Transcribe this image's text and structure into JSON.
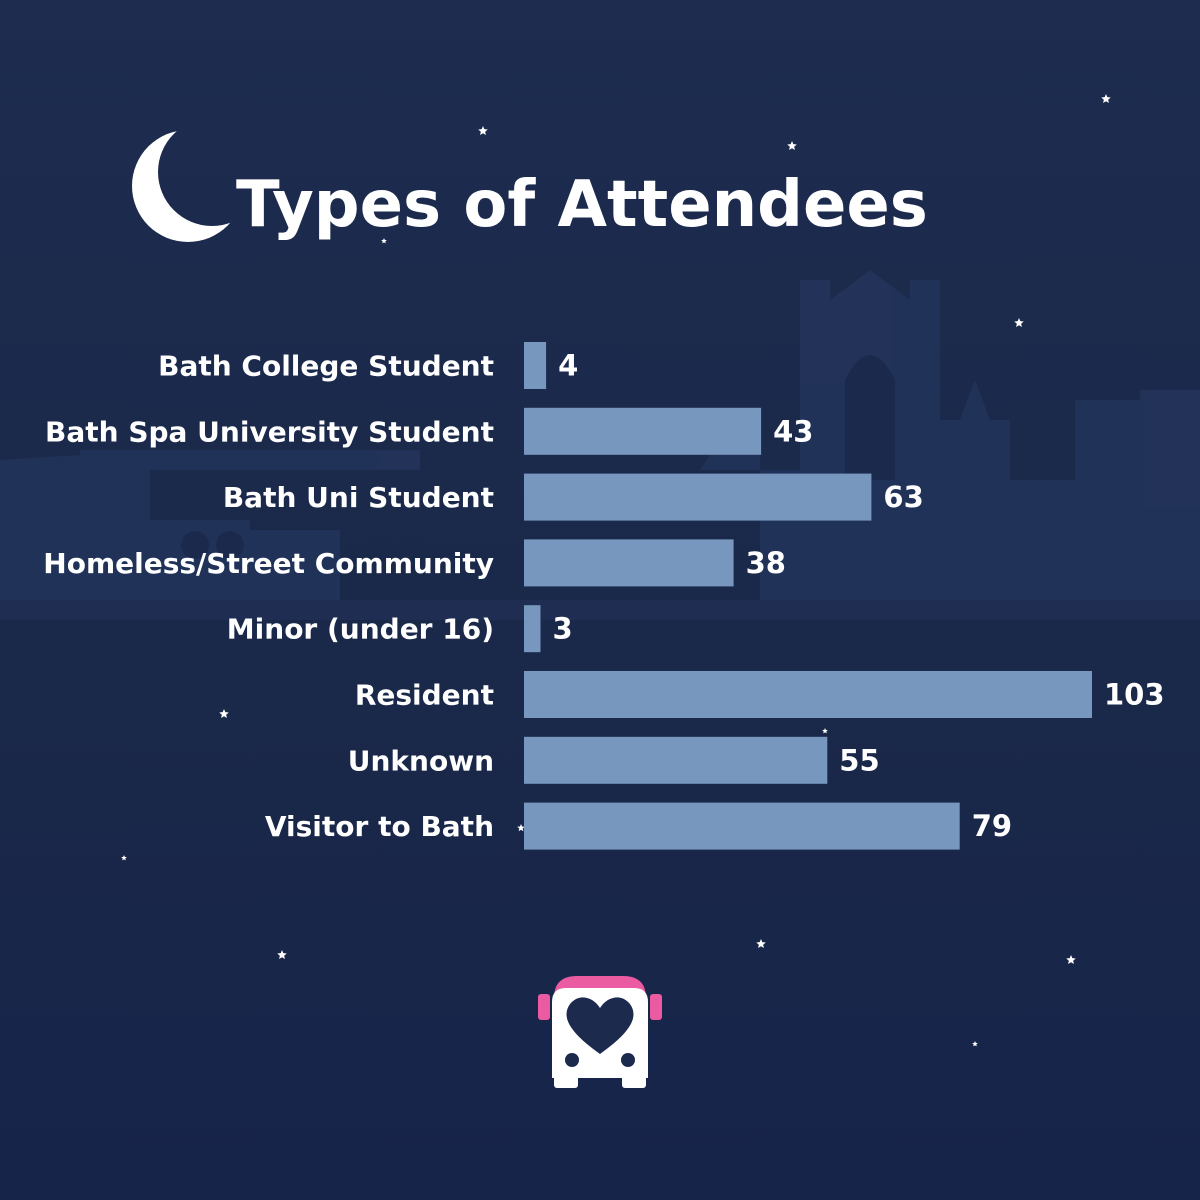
{
  "title": "Types of Attendees",
  "colors": {
    "background": "#1b2a4d",
    "bar": "#7797bf",
    "text": "#ffffff",
    "logo_accent": "#ea5ba1"
  },
  "decorations": {
    "moon_icon": "crescent-moon-icon",
    "logo_icon": "bus-heart-logo-icon",
    "background": "city-skyline-silhouette"
  },
  "chart_data": {
    "type": "bar",
    "orientation": "horizontal",
    "categories": [
      "Bath College Student",
      "Bath Spa University Student",
      "Bath Uni Student",
      "Homeless/Street Community",
      "Minor (under 16)",
      "Resident",
      "Unknown",
      "Visitor to Bath"
    ],
    "values": [
      4,
      43,
      63,
      38,
      3,
      103,
      55,
      79
    ],
    "title": "Types of Attendees",
    "xlabel": "",
    "ylabel": "",
    "xlim": [
      0,
      103
    ],
    "grid": false,
    "legend": "none"
  }
}
